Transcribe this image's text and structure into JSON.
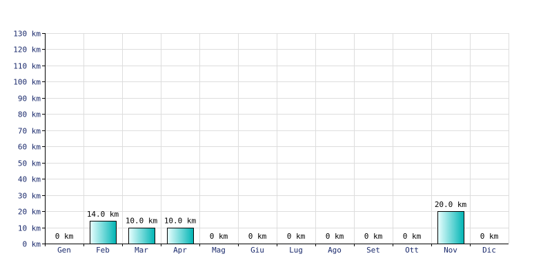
{
  "chart_data": {
    "type": "bar",
    "categories": [
      "Gen",
      "Feb",
      "Mar",
      "Apr",
      "Mag",
      "Giu",
      "Lug",
      "Ago",
      "Set",
      "Ott",
      "Nov",
      "Dic"
    ],
    "values": [
      0,
      14.0,
      10.0,
      10.0,
      0,
      0,
      0,
      0,
      0,
      0,
      20.0,
      0
    ],
    "value_labels": [
      "0 km",
      "14.0 km",
      "10.0 km",
      "10.0 km",
      "0 km",
      "0 km",
      "0 km",
      "0 km",
      "0 km",
      "0 km",
      "20.0 km",
      "0 km"
    ],
    "y_ticks": [
      0,
      10,
      20,
      30,
      40,
      50,
      60,
      70,
      80,
      90,
      100,
      110,
      120,
      130
    ],
    "y_tick_labels": [
      "0 km",
      "10 km",
      "20 km",
      "30 km",
      "40 km",
      "50 km",
      "60 km",
      "70 km",
      "80 km",
      "90 km",
      "100 km",
      "110 km",
      "120 km",
      "130 km"
    ],
    "ylim": [
      0,
      130
    ],
    "title": "",
    "xlabel": "",
    "ylabel": "",
    "grid": true,
    "colors": {
      "bar_light": "#e8ffff",
      "bar_dark": "#00b4b4",
      "bar_border": "#000000",
      "grid": "#dddddd",
      "axis": "#000000",
      "tick_text": "#1a2a6c"
    }
  }
}
